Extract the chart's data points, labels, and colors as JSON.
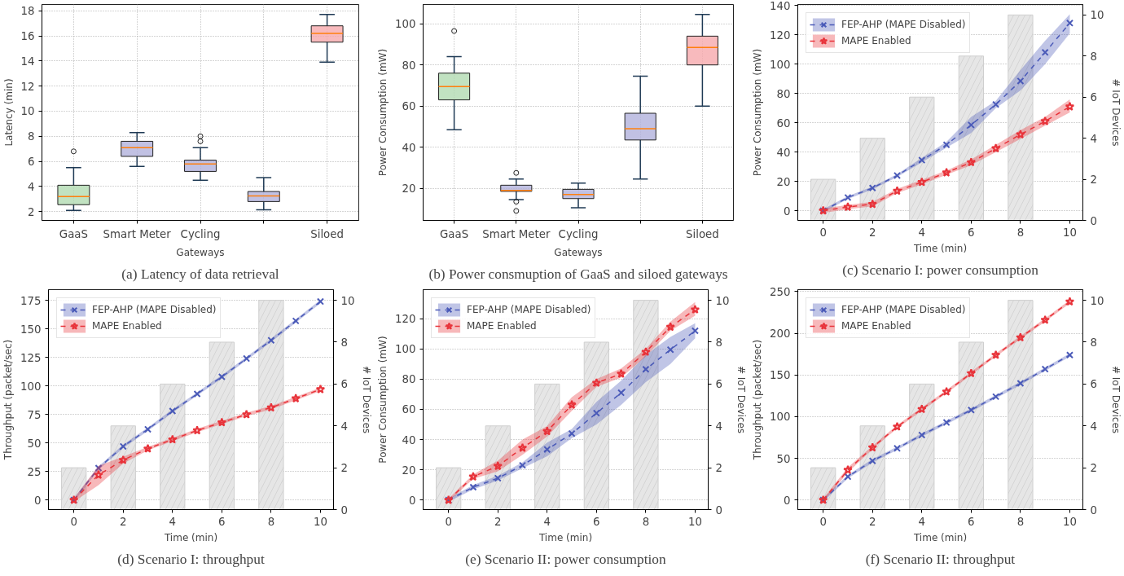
{
  "chart_data": [
    {
      "type": "box",
      "title": "(a) Latency of data retrieval",
      "xlabel": "Gateways",
      "ylabel": "Latency (min)",
      "categories": [
        "GaaS",
        "Smart Meter",
        "Cycling",
        null,
        "Siloed"
      ],
      "colors": [
        "#b2dbb2",
        "#b1b1dc",
        "#b1b1dc",
        "#b1b1dc",
        "#f6a9ad"
      ],
      "ylim": [
        1.3,
        18.5
      ],
      "yticks": [
        2,
        4,
        6,
        8,
        10,
        12,
        14,
        16,
        18
      ],
      "grid": true,
      "boxes": [
        {
          "low": 2.1,
          "q1": 2.55,
          "median": 3.2,
          "q3": 4.1,
          "high": 5.5,
          "outliers": [
            6.8
          ]
        },
        {
          "low": 5.6,
          "q1": 6.4,
          "median": 7.1,
          "q3": 7.6,
          "high": 8.3
        },
        {
          "low": 4.5,
          "q1": 5.2,
          "median": 5.8,
          "q3": 6.1,
          "high": 7.1,
          "outliers": [
            7.6,
            8.0
          ]
        },
        {
          "low": 2.15,
          "q1": 2.8,
          "median": 3.25,
          "q3": 3.6,
          "high": 4.7
        },
        {
          "low": 13.9,
          "q1": 15.5,
          "median": 16.2,
          "q3": 16.8,
          "high": 17.7
        }
      ]
    },
    {
      "type": "box",
      "title": "(b) Power consmuption of GaaS and siloed gateways",
      "xlabel": "Gateways",
      "ylabel": "Power Consumption (mW)",
      "categories": [
        "GaaS",
        "Smart Meter",
        "Cycling",
        null,
        "Siloed"
      ],
      "colors": [
        "#b2dbb2",
        "#b1b1dc",
        "#b1b1dc",
        "#b1b1dc",
        "#f6a9ad"
      ],
      "ylim": [
        4.4,
        109.4
      ],
      "yticks": [
        20,
        40,
        60,
        80,
        100
      ],
      "grid": true,
      "boxes": [
        {
          "low": 48.5,
          "q1": 63,
          "median": 69.5,
          "q3": 76,
          "high": 84,
          "outliers": [
            96.5
          ]
        },
        {
          "low": 14.5,
          "q1": 18.5,
          "median": 19,
          "q3": 21.5,
          "high": 24.5,
          "outliers": [
            27.5,
            13.5,
            9
          ]
        },
        {
          "low": 10.5,
          "q1": 15,
          "median": 17,
          "q3": 19.5,
          "high": 22.5
        },
        {
          "low": 24.5,
          "q1": 43.5,
          "median": 49,
          "q3": 56.5,
          "high": 74.5
        },
        {
          "low": 60,
          "q1": 80,
          "median": 88.5,
          "q3": 94,
          "high": 104.5
        }
      ]
    },
    {
      "type": "line",
      "title": "(c) Scenario I: power consumption",
      "xlabel": "Time (min)",
      "ylabel": "Power Consumption (mW)",
      "y2label": "# IoT Devices",
      "xlim": [
        -1.03,
        10.53
      ],
      "xticks": [
        0,
        2,
        4,
        6,
        8,
        10
      ],
      "ylim": [
        -6.6,
        140.7
      ],
      "yticks": [
        0,
        20,
        40,
        60,
        80,
        100,
        120,
        140
      ],
      "y2lim": [
        0,
        10.51
      ],
      "y2ticks": [
        0,
        2,
        4,
        6,
        8,
        10
      ],
      "grid": "y",
      "legend": "top left",
      "line_style": "dashed",
      "x": [
        0,
        1,
        2,
        3,
        4,
        5,
        6,
        7,
        8,
        9,
        10
      ],
      "series": [
        {
          "type": "bar",
          "axis": "y2",
          "color": "#e6e6e6",
          "x": [
            0,
            2,
            4,
            6,
            8
          ],
          "values": [
            2,
            4,
            6,
            8,
            10
          ]
        },
        {
          "name": "FEP-AHP (MAPE Disabled)",
          "color": "#4a5ab8",
          "marker": "cross",
          "values": [
            0,
            9,
            15.5,
            24,
            34.5,
            45,
            58.5,
            72.5,
            88.5,
            108,
            128
          ],
          "lower": [
            -1,
            8,
            14.5,
            23,
            33,
            43,
            53,
            70,
            82,
            100,
            121
          ],
          "upper": [
            1,
            10,
            16.5,
            25,
            36,
            47,
            64,
            75,
            96,
            116,
            134
          ]
        },
        {
          "name": "MAPE Enabled",
          "color": "#e8333a",
          "marker": "star",
          "values": [
            0,
            2.5,
            4.5,
            13.5,
            19.5,
            26,
            33,
            42.5,
            52,
            61,
            71
          ],
          "lower": [
            -1.5,
            1,
            3,
            12,
            18,
            24.5,
            31,
            40,
            49,
            58,
            67
          ],
          "upper": [
            1.5,
            4,
            6,
            15,
            21,
            27.5,
            35,
            45,
            55,
            64,
            76
          ]
        }
      ]
    },
    {
      "type": "line",
      "title": "(d) Scenario I: throughput",
      "xlabel": "Time (min)",
      "ylabel": "Throughput (packet/sec)",
      "y2label": "# IoT Devices",
      "xlim": [
        -1.03,
        10.53
      ],
      "xticks": [
        0,
        2,
        4,
        6,
        8,
        10
      ],
      "ylim": [
        -8.4,
        184.4
      ],
      "yticks": [
        0,
        25,
        50,
        75,
        100,
        125,
        150,
        175
      ],
      "y2lim": [
        0,
        10.51
      ],
      "y2ticks": [
        0,
        2,
        4,
        6,
        8,
        10
      ],
      "grid": "y",
      "legend": "top left",
      "line_style": "dashed",
      "x": [
        0,
        1,
        2,
        3,
        4,
        5,
        6,
        7,
        8,
        9,
        10
      ],
      "series": [
        {
          "type": "bar",
          "axis": "y2",
          "color": "#e6e6e6",
          "x": [
            0,
            2,
            4,
            6,
            8
          ],
          "values": [
            2,
            4,
            6,
            8,
            10
          ]
        },
        {
          "name": "FEP-AHP (MAPE Disabled)",
          "color": "#4a5ab8",
          "marker": "cross",
          "values": [
            0,
            28,
            47,
            62,
            78,
            93,
            108,
            124,
            140,
            157,
            174
          ],
          "lower": [
            -1.5,
            26.5,
            45.5,
            60.5,
            76.5,
            91.5,
            106.5,
            122.5,
            138.5,
            155.5,
            172.5
          ],
          "upper": [
            1.5,
            29.5,
            48.5,
            63.5,
            79.5,
            94.5,
            109.5,
            125.5,
            141.5,
            158.5,
            175.5
          ]
        },
        {
          "name": "MAPE Enabled",
          "color": "#e8333a",
          "marker": "star",
          "values": [
            0,
            22,
            35,
            45,
            53,
            61,
            68,
            75,
            81,
            89,
            97
          ],
          "lower": [
            -1.5,
            13,
            32,
            43.5,
            51.5,
            59.5,
            66.5,
            73.5,
            79.5,
            87.5,
            95.5
          ],
          "upper": [
            1.5,
            30,
            38,
            46.5,
            54.5,
            62.5,
            69.5,
            76.5,
            82.5,
            90.5,
            98.5
          ]
        }
      ]
    },
    {
      "type": "line",
      "title": "(e) Scenario II: power consumption",
      "xlabel": "Time (min)",
      "ylabel": "Power Consumption (mW)",
      "y2label": "# IoT Devices",
      "xlim": [
        -1.03,
        10.53
      ],
      "xticks": [
        0,
        2,
        4,
        6,
        8,
        10
      ],
      "ylim": [
        -6.3,
        139.2
      ],
      "yticks": [
        0,
        20,
        40,
        60,
        80,
        100,
        120
      ],
      "y2lim": [
        0,
        10.51
      ],
      "y2ticks": [
        0,
        2,
        4,
        6,
        8,
        10
      ],
      "grid": "y",
      "legend": "top left",
      "line_style": "dashed",
      "x": [
        0,
        1,
        2,
        3,
        4,
        5,
        6,
        7,
        8,
        9,
        10
      ],
      "series": [
        {
          "type": "bar",
          "axis": "y2",
          "color": "#e6e6e6",
          "x": [
            0,
            2,
            4,
            6,
            8
          ],
          "values": [
            2,
            4,
            6,
            8,
            10
          ]
        },
        {
          "name": "FEP-AHP (MAPE Disabled)",
          "color": "#4a5ab8",
          "marker": "cross",
          "values": [
            0,
            8.5,
            14.5,
            23,
            33.5,
            44,
            57.5,
            71,
            86.5,
            99.5,
            112
          ],
          "lower": [
            -1,
            7,
            13,
            21,
            29,
            41,
            50,
            63,
            78,
            90,
            107
          ],
          "upper": [
            1,
            10,
            16,
            25,
            38,
            47,
            65,
            79,
            96,
            108,
            117
          ]
        },
        {
          "name": "MAPE Enabled",
          "color": "#e8333a",
          "marker": "star",
          "values": [
            0,
            15.5,
            22.5,
            34.5,
            45.5,
            63,
            77.5,
            83.5,
            98,
            114.5,
            126
          ],
          "lower": [
            -1,
            14,
            19,
            30,
            42,
            59,
            75,
            81,
            95,
            112,
            122
          ],
          "upper": [
            1,
            17,
            26,
            40,
            49,
            68,
            80,
            87,
            100,
            118,
            131
          ]
        }
      ]
    },
    {
      "type": "line",
      "title": "(f) Scenario II: throughput",
      "xlabel": "Time (min)",
      "ylabel": "Throughput (packet/sec)",
      "y2label": "# IoT Devices",
      "xlim": [
        -1.03,
        10.53
      ],
      "xticks": [
        0,
        2,
        4,
        6,
        8,
        10
      ],
      "ylim": [
        -11.5,
        252.4
      ],
      "yticks": [
        0,
        50,
        100,
        150,
        200,
        250
      ],
      "y2lim": [
        0,
        10.51
      ],
      "y2ticks": [
        0,
        2,
        4,
        6,
        8,
        10
      ],
      "grid": "y",
      "legend": "top left",
      "line_style": "dashed",
      "x": [
        0,
        1,
        2,
        3,
        4,
        5,
        6,
        7,
        8,
        9,
        10
      ],
      "series": [
        {
          "type": "bar",
          "axis": "y2",
          "color": "#e6e6e6",
          "x": [
            0,
            2,
            4,
            6,
            8
          ],
          "values": [
            2,
            4,
            6,
            8,
            10
          ]
        },
        {
          "name": "FEP-AHP (MAPE Disabled)",
          "color": "#4a5ab8",
          "marker": "cross",
          "values": [
            0,
            28,
            47,
            62,
            78,
            93,
            108,
            124,
            140,
            157,
            174
          ],
          "lower": [
            -2,
            26,
            45,
            60,
            76,
            91,
            106,
            122,
            138,
            155,
            172
          ],
          "upper": [
            2,
            30,
            49,
            64,
            80,
            95,
            110,
            126,
            142,
            159,
            176
          ]
        },
        {
          "name": "MAPE Enabled",
          "color": "#e8333a",
          "marker": "star",
          "values": [
            0,
            36,
            63,
            88,
            109,
            130,
            152,
            174,
            195,
            216,
            238
          ],
          "lower": [
            -2,
            33,
            61,
            86,
            107,
            128,
            150,
            172,
            193,
            214,
            236
          ],
          "upper": [
            2,
            39,
            65,
            90,
            111,
            132,
            154,
            176,
            197,
            218,
            240
          ]
        }
      ]
    }
  ]
}
